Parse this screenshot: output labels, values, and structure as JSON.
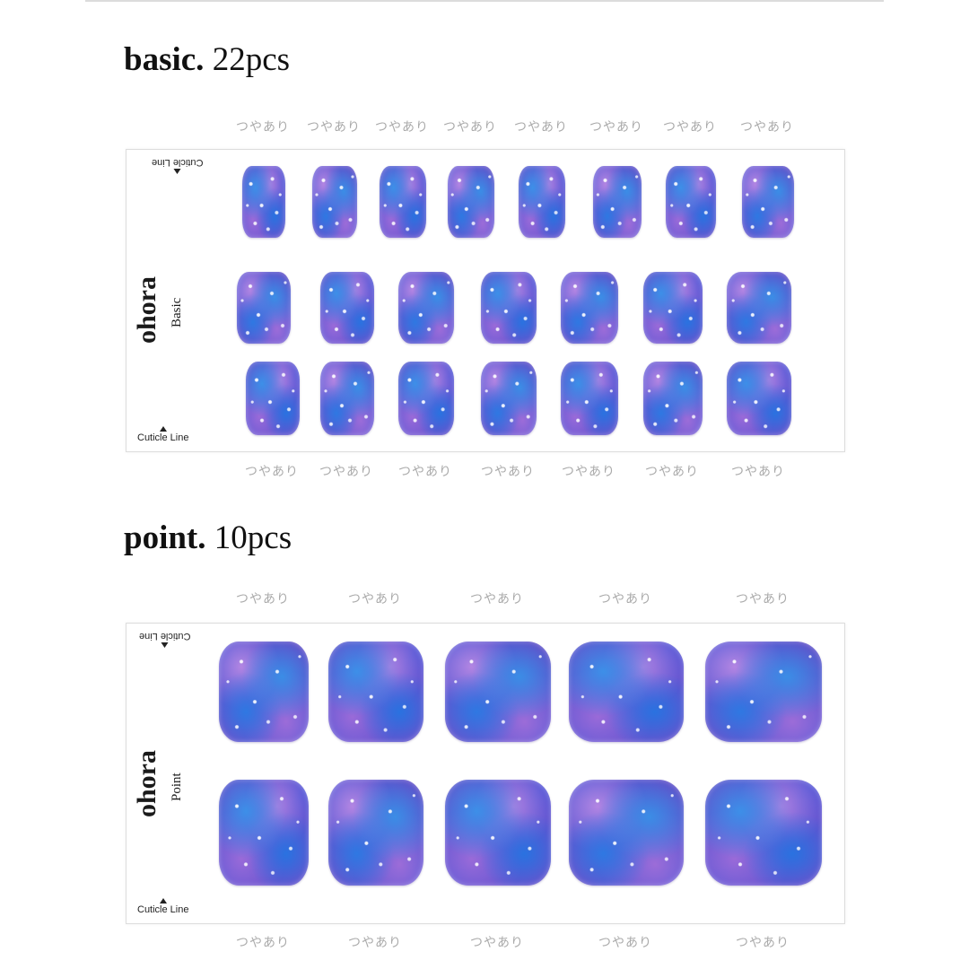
{
  "sections": [
    {
      "heading_bold": "basic.",
      "heading_count": "22pcs",
      "brand": "ohora",
      "sheet_label": "Basic",
      "cuticle_top": "Cuticle Line",
      "cuticle_bottom": "Cuticle Line",
      "rows": [
        {
          "count": 8,
          "finish_label": "つやあり"
        },
        {
          "count": 7,
          "finish_label": "つやあり"
        },
        {
          "count": 7,
          "finish_label": "つやあり"
        }
      ]
    },
    {
      "heading_bold": "point.",
      "heading_count": "10pcs",
      "brand": "ohora",
      "sheet_label": "Point",
      "cuticle_top": "Cuticle Line",
      "cuticle_bottom": "Cuticle Line",
      "rows": [
        {
          "count": 5,
          "finish_label": "つやあり"
        },
        {
          "count": 5,
          "finish_label": "つやあり"
        }
      ]
    }
  ],
  "colors": {
    "nail_blue": "#3d8fe8",
    "nail_purple": "#7a4bc6",
    "label_gray": "#aaaaaa"
  }
}
